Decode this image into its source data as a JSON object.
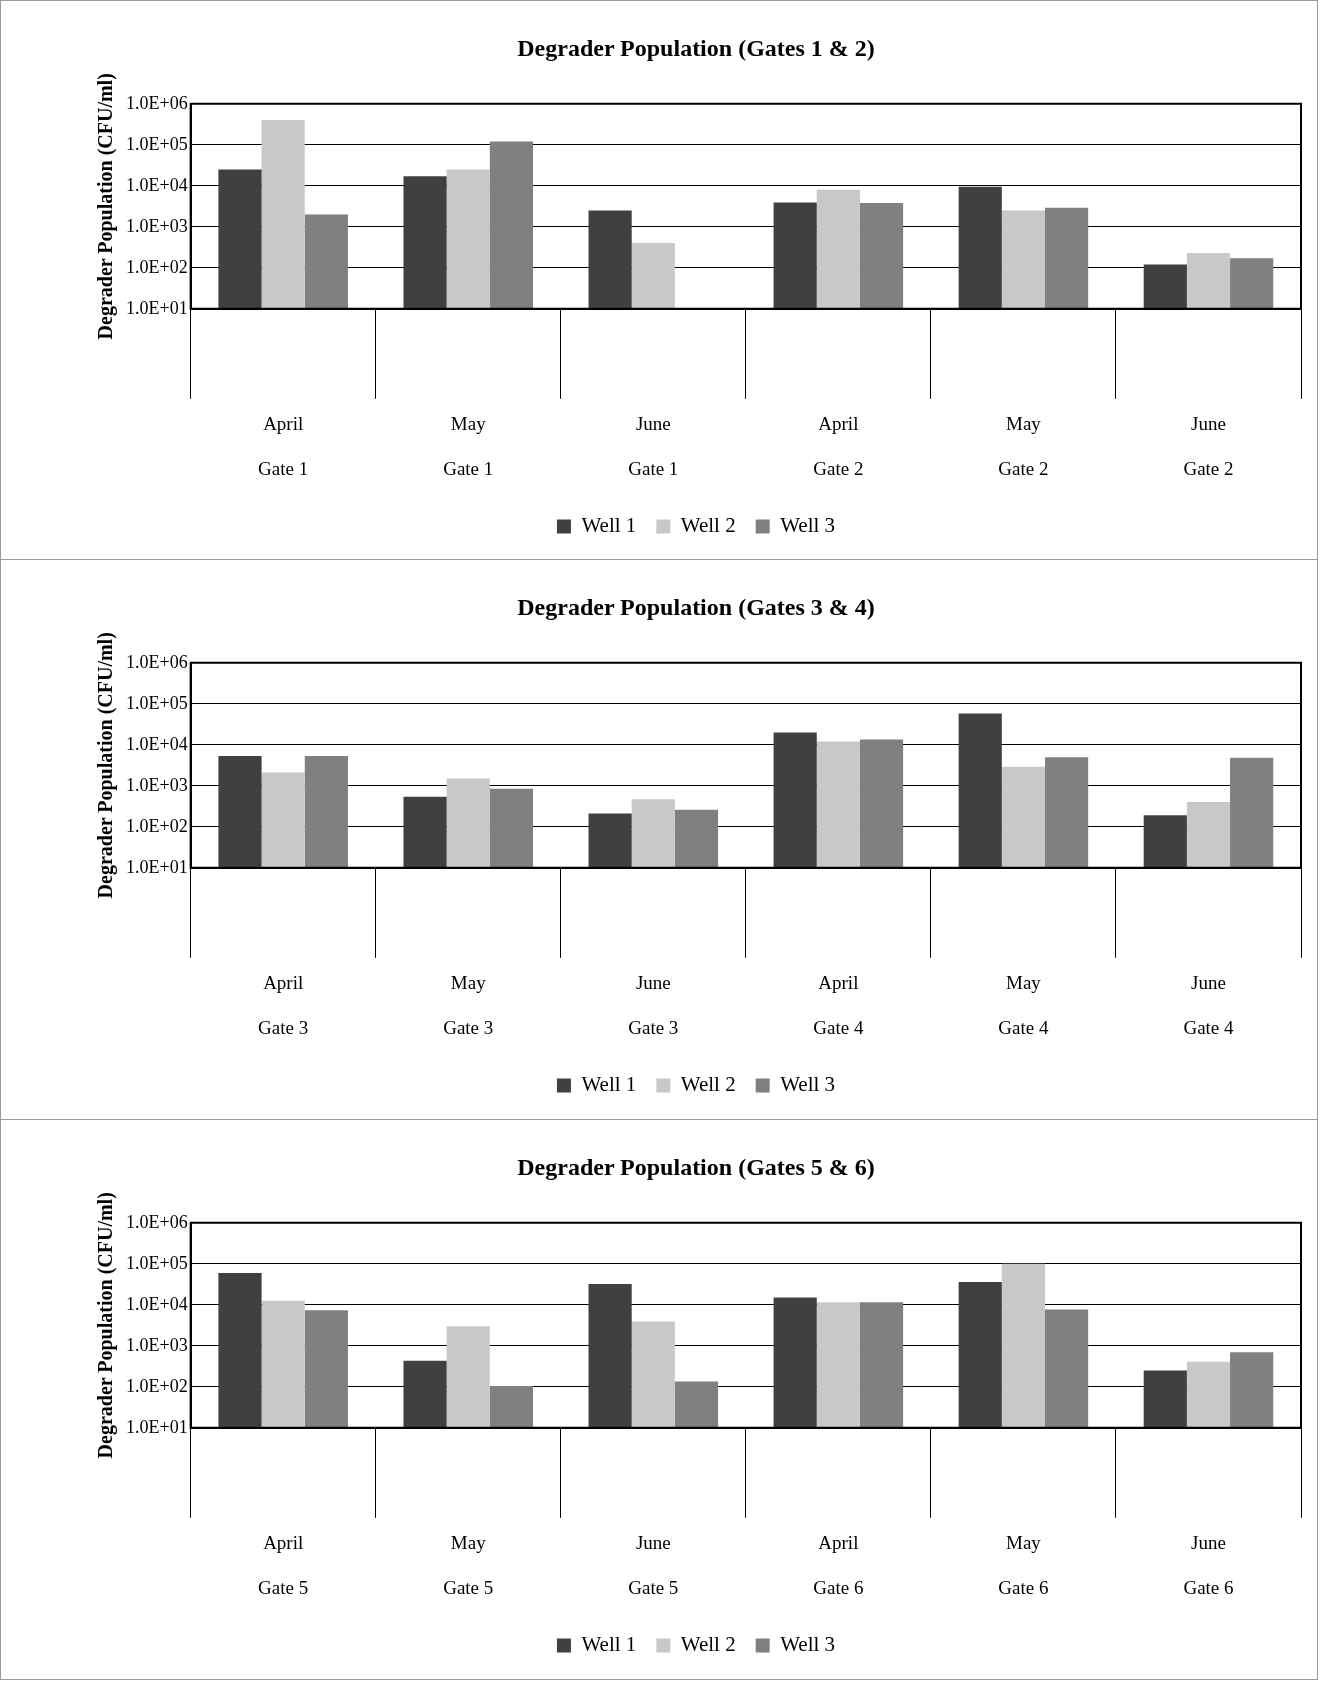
{
  "chart_data": [
    {
      "type": "bar",
      "title": "Degrader Population (Gates 1 & 2)",
      "ylabel": "Degrader Population (CFU/ml)",
      "categories": [
        "April\nGate 1",
        "May\nGate 1",
        "June\nGate 1",
        "April\nGate 2",
        "May\nGate 2",
        "June\nGate 2"
      ],
      "series": [
        {
          "name": "Well 1",
          "color": "#404040",
          "values": [
            25000,
            17000,
            2500,
            3900,
            9500,
            120
          ]
        },
        {
          "name": "Well 2",
          "color": "#c8c8c8",
          "values": [
            400000,
            25000,
            400,
            8000,
            2500,
            230
          ]
        },
        {
          "name": "Well 3",
          "color": "#808080",
          "values": [
            2000,
            120000,
            null,
            3800,
            2900,
            170
          ]
        }
      ],
      "log": true,
      "ylim": [
        10,
        1000000
      ],
      "yticks": [
        {
          "value": 10,
          "label": "1.0E+01"
        },
        {
          "value": 100,
          "label": "1.0E+02"
        },
        {
          "value": 1000,
          "label": "1.0E+03"
        },
        {
          "value": 10000,
          "label": "1.0E+04"
        },
        {
          "value": 100000,
          "label": "1.0E+05"
        },
        {
          "value": 1000000,
          "label": "1.0E+06"
        }
      ],
      "grid": "y",
      "legend": "bottom"
    },
    {
      "type": "bar",
      "title": "Degrader Population (Gates 3 & 4)",
      "ylabel": "Degrader Population (CFU/ml)",
      "categories": [
        "April\nGate 3",
        "May\nGate 3",
        "June\nGate 3",
        "April\nGate 4",
        "May\nGate 4",
        "June\nGate 4"
      ],
      "series": [
        {
          "name": "Well 1",
          "color": "#404040",
          "values": [
            5300,
            540,
            210,
            20000,
            58000,
            190
          ]
        },
        {
          "name": "Well 2",
          "color": "#c8c8c8",
          "values": [
            2100,
            1500,
            470,
            12000,
            2900,
            400
          ]
        },
        {
          "name": "Well 3",
          "color": "#808080",
          "values": [
            5300,
            850,
            260,
            13500,
            5000,
            4800
          ]
        }
      ],
      "log": true,
      "ylim": [
        10,
        1000000
      ],
      "yticks": [
        {
          "value": 10,
          "label": "1.0E+01"
        },
        {
          "value": 100,
          "label": "1.0E+02"
        },
        {
          "value": 1000,
          "label": "1.0E+03"
        },
        {
          "value": 10000,
          "label": "1.0E+04"
        },
        {
          "value": 100000,
          "label": "1.0E+05"
        },
        {
          "value": 1000000,
          "label": "1.0E+06"
        }
      ],
      "grid": "y",
      "legend": "bottom"
    },
    {
      "type": "bar",
      "title": "Degrader Population (Gates 5 & 6)",
      "ylabel": "Degrader Population (CFU/ml)",
      "categories": [
        "April\nGate 5",
        "May\nGate 5",
        "June\nGate 5",
        "April\nGate 6",
        "May\nGate 6",
        "June\nGate 6"
      ],
      "series": [
        {
          "name": "Well 1",
          "color": "#404040",
          "values": [
            60000,
            430,
            32000,
            15000,
            36000,
            250
          ]
        },
        {
          "name": "Well 2",
          "color": "#c8c8c8",
          "values": [
            12500,
            3000,
            3900,
            11500,
            100000,
            410
          ]
        },
        {
          "name": "Well 3",
          "color": "#808080",
          "values": [
            7400,
            105,
            135,
            11500,
            7700,
            700
          ]
        }
      ],
      "log": true,
      "ylim": [
        10,
        1000000
      ],
      "yticks": [
        {
          "value": 10,
          "label": "1.0E+01"
        },
        {
          "value": 100,
          "label": "1.0E+02"
        },
        {
          "value": 1000,
          "label": "1.0E+03"
        },
        {
          "value": 10000,
          "label": "1.0E+04"
        },
        {
          "value": 100000,
          "label": "1.0E+05"
        },
        {
          "value": 1000000,
          "label": "1.0E+06"
        }
      ],
      "grid": "y",
      "legend": "bottom"
    }
  ]
}
